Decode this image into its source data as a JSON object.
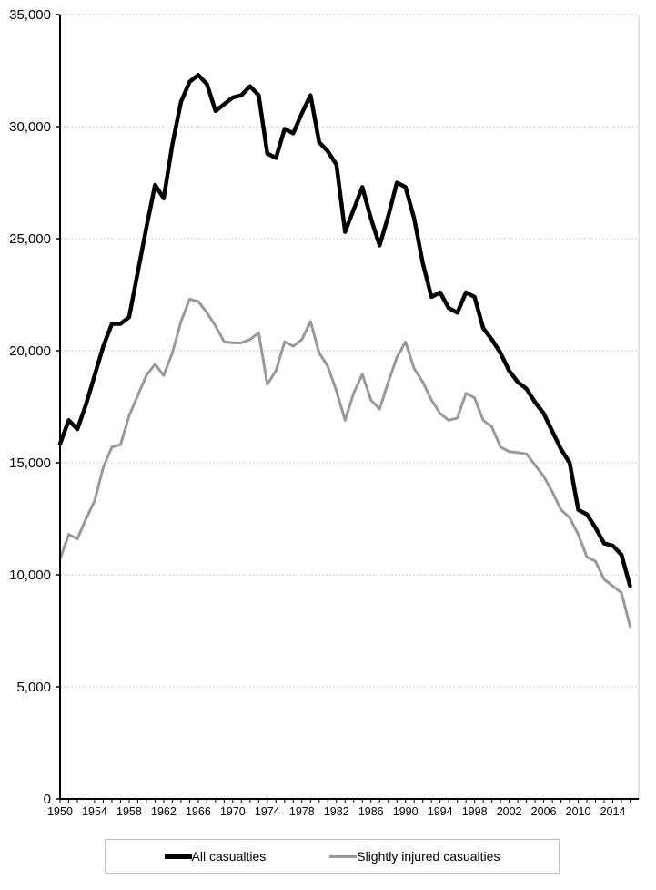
{
  "page": {
    "background": "#ffffff"
  },
  "legend": {
    "items": [
      {
        "label": "All casualties",
        "color": "#000000"
      },
      {
        "label": "Slightly injured casualties",
        "color": "#999999"
      }
    ]
  },
  "chart_data": {
    "type": "line",
    "title": "",
    "xlabel": "",
    "ylabel": "",
    "ylim": [
      0,
      35000
    ],
    "ytick_interval": 5000,
    "yticks": [
      0,
      5000,
      10000,
      15000,
      20000,
      25000,
      30000,
      35000
    ],
    "ytick_labels": [
      "0",
      "5,000",
      "10,000",
      "15,000",
      "20,000",
      "25,000",
      "30,000",
      "35,000"
    ],
    "xtick_label_years": [
      1950,
      1954,
      1958,
      1962,
      1966,
      1970,
      1974,
      1978,
      1982,
      1986,
      1990,
      1994,
      1998,
      2002,
      2006,
      2010,
      2014
    ],
    "xtick_minor_every": 1,
    "grid": "horizontal, light gray dotted",
    "legend_position": "bottom-center boxed",
    "axis_color": "#000000",
    "gridline_color": "#c8c8c8",
    "border_color": "#c8c8c8",
    "years": [
      1950,
      1951,
      1952,
      1953,
      1954,
      1955,
      1956,
      1957,
      1958,
      1959,
      1960,
      1961,
      1962,
      1963,
      1964,
      1965,
      1966,
      1967,
      1968,
      1969,
      1970,
      1971,
      1972,
      1973,
      1974,
      1975,
      1976,
      1977,
      1978,
      1979,
      1980,
      1981,
      1982,
      1983,
      1984,
      1985,
      1986,
      1987,
      1988,
      1989,
      1990,
      1991,
      1992,
      1993,
      1994,
      1995,
      1996,
      1997,
      1998,
      1999,
      2000,
      2001,
      2002,
      2003,
      2004,
      2005,
      2006,
      2007,
      2008,
      2009,
      2010,
      2011,
      2012,
      2013,
      2014,
      2015,
      2016
    ],
    "series": [
      {
        "name": "All casualties",
        "color": "#000000",
        "values": [
          15850,
          16900,
          16500,
          17600,
          18900,
          20200,
          21200,
          21200,
          21500,
          23500,
          25500,
          27400,
          26800,
          29200,
          31100,
          32000,
          32300,
          31900,
          30700,
          31000,
          31300,
          31400,
          31800,
          31400,
          28800,
          28600,
          29900,
          29700,
          30600,
          31400,
          29300,
          28900,
          28300,
          25300,
          26300,
          27300,
          25900,
          24700,
          26000,
          27500,
          27300,
          25900,
          23900,
          22400,
          22600,
          21900,
          21700,
          22600,
          22400,
          21000,
          20500,
          19900,
          19100,
          18600,
          18300,
          17700,
          17200,
          16400,
          15600,
          15000,
          12900,
          12700,
          12100,
          11400,
          11300,
          10900,
          9500
        ]
      },
      {
        "name": "Slightly injured casualties",
        "color": "#999999",
        "values": [
          10700,
          11800,
          11600,
          12500,
          13300,
          14800,
          15700,
          15800,
          17100,
          18000,
          18900,
          19400,
          18900,
          19900,
          21300,
          22300,
          22200,
          21700,
          21100,
          20400,
          20350,
          20350,
          20500,
          20800,
          18500,
          19100,
          20400,
          20200,
          20500,
          21300,
          19900,
          19300,
          18200,
          16900,
          18100,
          18950,
          17800,
          17400,
          18600,
          19700,
          20400,
          19200,
          18600,
          17800,
          17200,
          16900,
          17000,
          18100,
          17900,
          16900,
          16600,
          15700,
          15500,
          15450,
          15400,
          14900,
          14400,
          13700,
          12900,
          12550,
          11800,
          10800,
          10600,
          9800,
          9500,
          9200,
          7700
        ]
      }
    ]
  }
}
